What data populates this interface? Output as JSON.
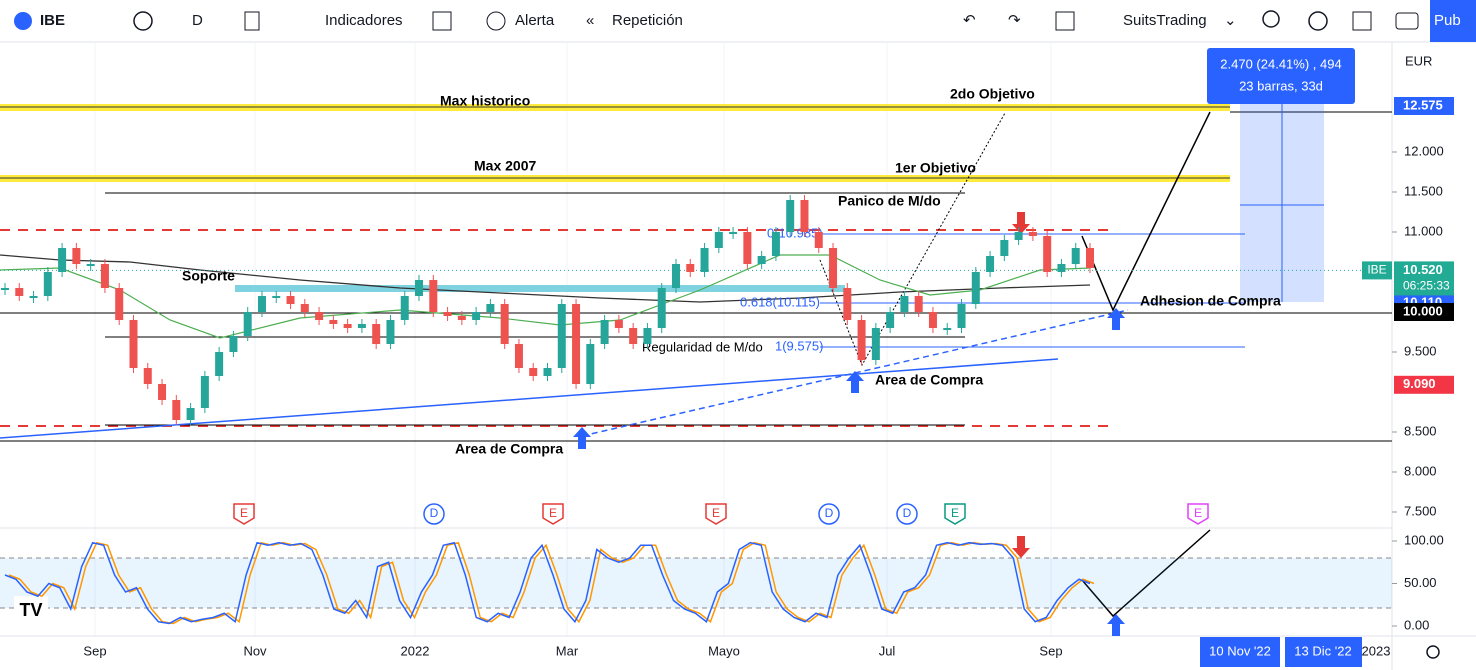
{
  "toolbar": {
    "symbol": "IBE",
    "interval": "D",
    "indicators": "Indicadores",
    "alert": "Alerta",
    "replay": "Repetición",
    "layout_name": "SuitsTrading",
    "publish": "Pub"
  },
  "currency": "EUR",
  "price_ticks": [
    {
      "value": 12,
      "label": "12.000"
    },
    {
      "value": 11.5,
      "label": "11.500"
    },
    {
      "value": 11,
      "label": "11.000"
    },
    {
      "value": 9.5,
      "label": "9.500"
    },
    {
      "value": 8.5,
      "label": "8.500"
    },
    {
      "value": 8,
      "label": "8.000"
    },
    {
      "value": 7.5,
      "label": "7.500"
    }
  ],
  "price_labels": [
    {
      "value": 12.575,
      "label": "12.575",
      "color": "#2962ff"
    },
    {
      "value": 10.11,
      "label": "10.110",
      "color": "#2962ff"
    },
    {
      "value": 10,
      "label": "10.000",
      "color": "#000000"
    },
    {
      "value": 9.09,
      "label": "9.090",
      "color": "#f23645"
    }
  ],
  "last_price": {
    "symbol": "IBE",
    "value": 10.52,
    "label": "10.520",
    "countdown": "06:25:33",
    "color": "#22ab94"
  },
  "osc_ticks": [
    {
      "value": 100,
      "label": "100.00"
    },
    {
      "value": 50,
      "label": "50.00"
    },
    {
      "value": 0,
      "label": "0.00"
    }
  ],
  "time_labels": [
    "Sep",
    "Nov",
    "2022",
    "Mar",
    "Mayo",
    "Jul",
    "Sep",
    "2023"
  ],
  "time_boxes": [
    "10 Nov '22",
    "13 Dic '22"
  ],
  "measure": {
    "line1": "2.470 (24.41%) , 494",
    "line2": "23 barras, 33d"
  },
  "annotations": {
    "max_hist": "Max historico",
    "obj2": "2do Objetivo",
    "max2007": "Max 2007",
    "obj1": "1er Objetivo",
    "panico": "Panico de M/do",
    "soporte": "Soporte",
    "fib0": "0(10.985)",
    "fib618": "0.618(10.115)",
    "adhesion": "Adhesion de Compra",
    "regularidad": "Regularidad de M/do",
    "fib1": "1(9.575)",
    "area1": "Area de Compra",
    "area2": "Area de Compra"
  },
  "events": [
    "E",
    "D",
    "E",
    "E",
    "D",
    "D",
    "E",
    "E"
  ],
  "closes": [
    10.3,
    10.2,
    10.2,
    10.5,
    10.8,
    10.6,
    10.6,
    10.3,
    9.9,
    9.3,
    9.1,
    8.9,
    8.65,
    8.8,
    9.2,
    9.5,
    9.7,
    10.0,
    10.2,
    10.2,
    10.1,
    10.0,
    9.9,
    9.85,
    9.8,
    9.85,
    9.6,
    9.9,
    10.2,
    10.4,
    10.0,
    9.95,
    9.9,
    10.0,
    10.1,
    9.6,
    9.3,
    9.2,
    9.3,
    10.1,
    9.1,
    9.6,
    9.9,
    9.8,
    9.6,
    9.8,
    10.3,
    10.6,
    10.5,
    10.8,
    11.0,
    11.0,
    10.6,
    10.7,
    11.0,
    11.4,
    11.0,
    10.8,
    10.3,
    9.9,
    9.4,
    9.8,
    10.0,
    10.2,
    10.0,
    9.8,
    9.8,
    10.1,
    10.5,
    10.7,
    10.9,
    11.0,
    10.95,
    10.5,
    10.6,
    10.8,
    10.55
  ],
  "oscillator": [
    60,
    55,
    40,
    35,
    50,
    45,
    20,
    70,
    98,
    95,
    60,
    40,
    45,
    20,
    5,
    3,
    10,
    5,
    8,
    10,
    15,
    5,
    60,
    98,
    95,
    98,
    95,
    97,
    90,
    60,
    20,
    15,
    30,
    10,
    70,
    75,
    30,
    10,
    40,
    60,
    95,
    98,
    60,
    10,
    5,
    15,
    10,
    40,
    80,
    95,
    60,
    20,
    5,
    30,
    90,
    80,
    75,
    80,
    95,
    95,
    60,
    30,
    20,
    15,
    5,
    40,
    50,
    90,
    98,
    95,
    40,
    20,
    10,
    5,
    15,
    10,
    60,
    80,
    95,
    60,
    20,
    15,
    40,
    45,
    60,
    95,
    98,
    95,
    98,
    96,
    97,
    95,
    80,
    20,
    5,
    10,
    30,
    45,
    55,
    50
  ]
}
